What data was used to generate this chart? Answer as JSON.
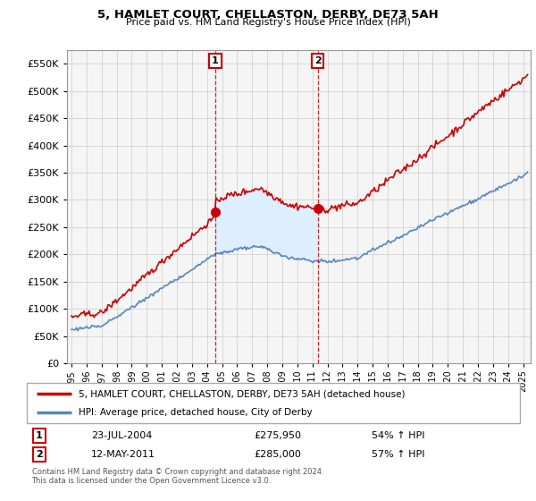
{
  "title": "5, HAMLET COURT, CHELLASTON, DERBY, DE73 5AH",
  "subtitle": "Price paid vs. HM Land Registry's House Price Index (HPI)",
  "legend_line1": "5, HAMLET COURT, CHELLASTON, DERBY, DE73 5AH (detached house)",
  "legend_line2": "HPI: Average price, detached house, City of Derby",
  "sale1_date_label": "23-JUL-2004",
  "sale1_price": 275950,
  "sale1_pct": "54% ↑ HPI",
  "sale1_year": 2004.55,
  "sale2_date_label": "12-MAY-2011",
  "sale2_price": 285000,
  "sale2_pct": "57% ↑ HPI",
  "sale2_year": 2011.36,
  "footnote": "Contains HM Land Registry data © Crown copyright and database right 2024.\nThis data is licensed under the Open Government Licence v3.0.",
  "red_color": "#cc0000",
  "blue_color": "#5588bb",
  "fill_color": "#ddeeff",
  "ylim": [
    0,
    575000
  ],
  "xlim_start": 1994.7,
  "xlim_end": 2025.5,
  "yticks": [
    0,
    50000,
    100000,
    150000,
    200000,
    250000,
    300000,
    350000,
    400000,
    450000,
    500000,
    550000
  ],
  "xticks": [
    1995,
    1996,
    1997,
    1998,
    1999,
    2000,
    2001,
    2002,
    2003,
    2004,
    2005,
    2006,
    2007,
    2008,
    2009,
    2010,
    2011,
    2012,
    2013,
    2014,
    2015,
    2016,
    2017,
    2018,
    2019,
    2020,
    2021,
    2022,
    2023,
    2024,
    2025
  ]
}
